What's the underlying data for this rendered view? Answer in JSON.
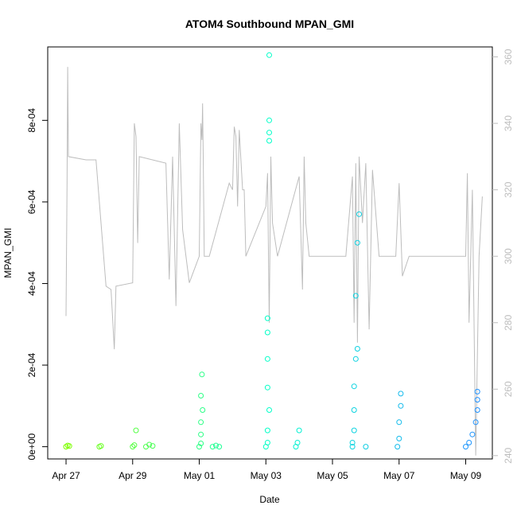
{
  "chart_data": {
    "type": "scatter",
    "title": "ATOM4 Southbound MPAN_GMI",
    "xlabel": "Date",
    "ylabel": "MPAN_GMI",
    "x_ticks": [
      "Apr 27",
      "Apr 29",
      "May 01",
      "May 03",
      "May 05",
      "May 07",
      "May 09"
    ],
    "y_ticks": [
      "0e+00",
      "2e-04",
      "4e-04",
      "6e-04",
      "8e-04"
    ],
    "y_tick_values": [
      0,
      0.0002,
      0.0004,
      0.0006,
      0.0008
    ],
    "y_range": [
      -3e-05,
      0.00098
    ],
    "x_range_days": [
      -0.55,
      12.8
    ],
    "right_axis_ticks": [
      "240",
      "260",
      "280",
      "300",
      "320",
      "340",
      "360"
    ],
    "right_axis_tick_values": [
      240,
      260,
      280,
      300,
      320,
      340,
      360
    ],
    "right_axis_range": [
      239,
      363
    ],
    "colors": {
      "points_start": "#7fff00",
      "points_mid": "#00ffcc",
      "points_end": "#1e90ff",
      "line": "#bdbdbd"
    },
    "scatter_points": [
      [
        0.0,
        0.0
      ],
      [
        0.05,
        3e-06
      ],
      [
        0.1,
        1.5e-06
      ],
      [
        1.0,
        0.0
      ],
      [
        1.05,
        2e-06
      ],
      [
        2.0,
        0.0
      ],
      [
        2.05,
        4e-06
      ],
      [
        2.1,
        4e-05
      ],
      [
        2.4,
        0.0
      ],
      [
        2.5,
        5e-06
      ],
      [
        2.6,
        2e-06
      ],
      [
        4.0,
        0.0
      ],
      [
        4.05,
        8e-06
      ],
      [
        4.05,
        3e-05
      ],
      [
        4.05,
        6e-05
      ],
      [
        4.1,
        9e-05
      ],
      [
        4.05,
        0.000125
      ],
      [
        4.08,
        0.000177
      ],
      [
        4.4,
        0.0
      ],
      [
        4.5,
        3e-06
      ],
      [
        4.6,
        0.0
      ],
      [
        6.0,
        0.0
      ],
      [
        6.05,
        1e-05
      ],
      [
        6.05,
        4e-05
      ],
      [
        6.1,
        9e-05
      ],
      [
        6.05,
        0.000145
      ],
      [
        6.05,
        0.000215
      ],
      [
        6.05,
        0.00028
      ],
      [
        6.05,
        0.000315
      ],
      [
        6.1,
        0.00075
      ],
      [
        6.1,
        0.00077
      ],
      [
        6.1,
        0.0008
      ],
      [
        6.1,
        0.00096
      ],
      [
        6.9,
        0.0
      ],
      [
        6.95,
        1e-05
      ],
      [
        7.0,
        4e-05
      ],
      [
        8.6,
        0.0
      ],
      [
        8.6,
        1e-05
      ],
      [
        8.65,
        4e-05
      ],
      [
        8.65,
        9e-05
      ],
      [
        8.65,
        0.000148
      ],
      [
        8.7,
        0.000215
      ],
      [
        8.75,
        0.00024
      ],
      [
        8.7,
        0.00037
      ],
      [
        8.75,
        0.0005
      ],
      [
        8.8,
        0.00057
      ],
      [
        9.0,
        0.0
      ],
      [
        9.95,
        0.0
      ],
      [
        10.0,
        2e-05
      ],
      [
        10.0,
        6e-05
      ],
      [
        10.05,
        0.0001
      ],
      [
        10.05,
        0.00013
      ],
      [
        12.0,
        0.0
      ],
      [
        12.1,
        1e-05
      ],
      [
        12.2,
        3e-05
      ],
      [
        12.3,
        6e-05
      ],
      [
        12.35,
        9e-05
      ],
      [
        12.35,
        0.000115
      ],
      [
        12.35,
        0.000135
      ]
    ],
    "line_points": [
      [
        0.0,
        282
      ],
      [
        0.03,
        322
      ],
      [
        0.05,
        357
      ],
      [
        0.07,
        330
      ],
      [
        0.6,
        329
      ],
      [
        0.9,
        329
      ],
      [
        1.2,
        291
      ],
      [
        1.35,
        290
      ],
      [
        1.45,
        272
      ],
      [
        1.5,
        291
      ],
      [
        2.0,
        292
      ],
      [
        2.05,
        340
      ],
      [
        2.1,
        336
      ],
      [
        2.15,
        304
      ],
      [
        2.2,
        330
      ],
      [
        3.0,
        328
      ],
      [
        3.1,
        293
      ],
      [
        3.2,
        330
      ],
      [
        3.3,
        285
      ],
      [
        3.4,
        340
      ],
      [
        3.5,
        308
      ],
      [
        3.7,
        292
      ],
      [
        4.0,
        300
      ],
      [
        4.05,
        340
      ],
      [
        4.08,
        335
      ],
      [
        4.1,
        346
      ],
      [
        4.12,
        330
      ],
      [
        4.15,
        300
      ],
      [
        4.3,
        300
      ],
      [
        4.9,
        322
      ],
      [
        5.0,
        320
      ],
      [
        5.05,
        339
      ],
      [
        5.1,
        336
      ],
      [
        5.15,
        315
      ],
      [
        5.2,
        338
      ],
      [
        5.3,
        320
      ],
      [
        5.35,
        320
      ],
      [
        5.4,
        300
      ],
      [
        6.0,
        315
      ],
      [
        6.05,
        325
      ],
      [
        6.1,
        280
      ],
      [
        6.15,
        330
      ],
      [
        6.2,
        310
      ],
      [
        6.35,
        300
      ],
      [
        7.0,
        324
      ],
      [
        7.1,
        290
      ],
      [
        7.15,
        330
      ],
      [
        7.2,
        310
      ],
      [
        7.3,
        300
      ],
      [
        8.4,
        300
      ],
      [
        8.6,
        324
      ],
      [
        8.65,
        280
      ],
      [
        8.7,
        328
      ],
      [
        8.75,
        274
      ],
      [
        8.8,
        330
      ],
      [
        8.9,
        310
      ],
      [
        9.0,
        328
      ],
      [
        9.1,
        278
      ],
      [
        9.2,
        326
      ],
      [
        9.4,
        300
      ],
      [
        9.9,
        300
      ],
      [
        10.0,
        322
      ],
      [
        10.1,
        294
      ],
      [
        10.3,
        300
      ],
      [
        10.45,
        300
      ],
      [
        12.0,
        300
      ],
      [
        12.05,
        325
      ],
      [
        12.1,
        280
      ],
      [
        12.2,
        320
      ],
      [
        12.3,
        240
      ],
      [
        12.4,
        300
      ],
      [
        12.5,
        318
      ]
    ]
  }
}
